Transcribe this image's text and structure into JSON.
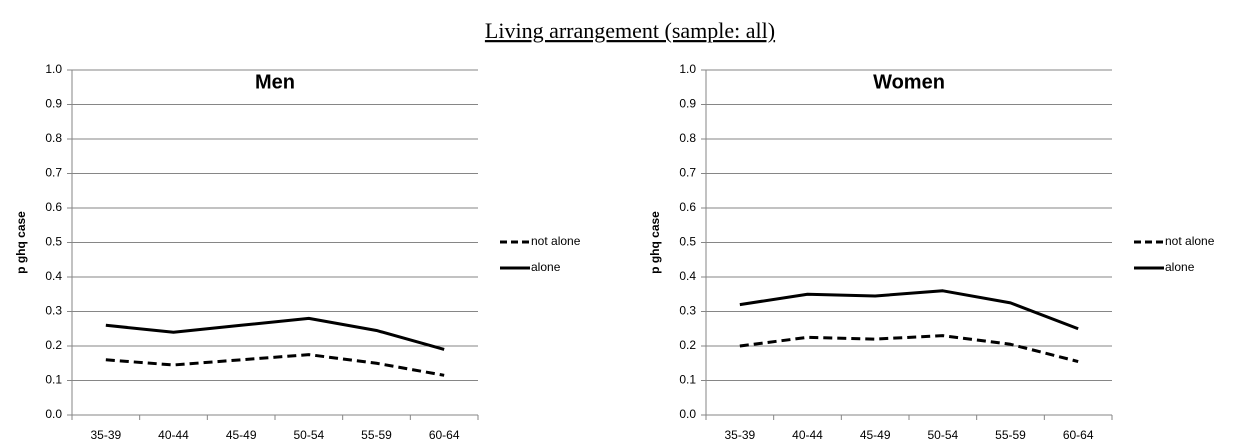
{
  "title": "Living arrangement (sample: all)",
  "chart_data": [
    {
      "type": "line",
      "title": "Men",
      "ylabel": "p ghq case",
      "categories": [
        "35-39",
        "40-44",
        "45-49",
        "50-54",
        "55-59",
        "60-64"
      ],
      "series": [
        {
          "name": "not alone",
          "color": "#000000",
          "style": "dashed",
          "values": [
            0.16,
            0.145,
            0.16,
            0.175,
            0.15,
            0.115
          ]
        },
        {
          "name": "alone",
          "color": "#000000",
          "style": "solid",
          "values": [
            0.26,
            0.24,
            0.26,
            0.28,
            0.245,
            0.19
          ]
        }
      ],
      "ylim": [
        0,
        1
      ],
      "yticks": [
        {
          "value": 0,
          "label": "0.0"
        },
        0.1,
        0.2,
        0.3,
        0.4,
        0.5,
        0.6,
        0.7,
        0.8,
        0.9,
        {
          "value": 1,
          "label": "1.0"
        }
      ],
      "grid": true,
      "legend": "right"
    },
    {
      "type": "line",
      "title": "Women",
      "ylabel": "p ghq case",
      "categories": [
        "35-39",
        "40-44",
        "45-49",
        "50-54",
        "55-59",
        "60-64"
      ],
      "series": [
        {
          "name": "not alone",
          "color": "#000000",
          "style": "dashed",
          "values": [
            0.2,
            0.225,
            0.22,
            0.23,
            0.205,
            0.155
          ]
        },
        {
          "name": "alone",
          "color": "#000000",
          "style": "solid",
          "values": [
            0.32,
            0.35,
            0.345,
            0.36,
            0.325,
            0.25
          ]
        }
      ],
      "ylim": [
        0,
        1
      ],
      "yticks": [
        {
          "value": 0,
          "label": "0.0"
        },
        0.1,
        0.2,
        0.3,
        0.4,
        0.5,
        0.6,
        0.7,
        0.8,
        0.9,
        {
          "value": 1,
          "label": "1.0"
        }
      ],
      "grid": true,
      "legend": "right"
    }
  ]
}
